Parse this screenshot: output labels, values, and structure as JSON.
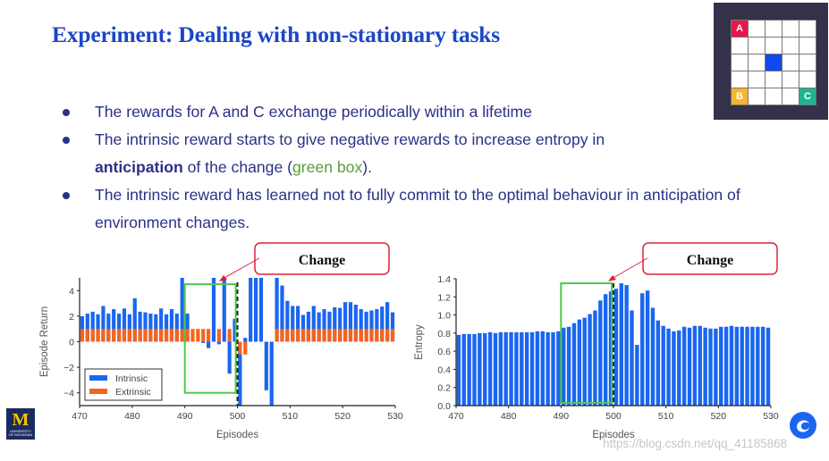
{
  "title": "Experiment: Dealing with non-stationary tasks",
  "bullets": [
    {
      "text": "The rewards for A and C exchange periodically within a lifetime"
    },
    {
      "text_before": "The intrinsic reward starts to give negative rewards to increase entropy in",
      "bold": "anticipation",
      "text_middle": " of the change (",
      "green": "green box",
      "text_after": ")."
    },
    {
      "text": "The intrinsic reward has learned not to fully commit to the optimal behaviour in anticipation of environment changes."
    }
  ],
  "gridworld": {
    "labels": {
      "a": "A",
      "b": "B",
      "c": "C"
    },
    "colors": {
      "a": "#e8174a",
      "b": "#f6b52f",
      "c": "#1fb38f",
      "agent": "#1248f0"
    }
  },
  "logo": {
    "text_m": "M",
    "text_university": "UNIVERSITY OF MICHIGAN"
  },
  "watermark": "https://blog.csdn.net/qq_41185868",
  "colors": {
    "intrinsic": "#1a66f0",
    "extrinsic": "#f5641e",
    "highlight_box": "#4cc74c",
    "callout_border": "#e0203a"
  },
  "chart_data": [
    {
      "type": "bar",
      "callout": "Change",
      "xlabel": "Episodes",
      "ylabel": "Episode Return",
      "xlim": [
        470,
        530
      ],
      "ylim": [
        -5,
        5
      ],
      "xticks": [
        "470",
        "480",
        "490",
        "500",
        "510",
        "520",
        "530"
      ],
      "yticks": [
        "4",
        "2",
        "0",
        "−2",
        "−4"
      ],
      "ytick_values": [
        4,
        2,
        0,
        -2,
        -4
      ],
      "change_episode": 500,
      "highlight_range": [
        490,
        499
      ],
      "highlight_y": [
        -4,
        4.5
      ],
      "legend": [
        "Intrinsic",
        "Extrinsic"
      ],
      "legend_position": "bottom-left",
      "x": [
        470,
        471,
        472,
        473,
        474,
        475,
        476,
        477,
        478,
        479,
        480,
        481,
        482,
        483,
        484,
        485,
        486,
        487,
        488,
        489,
        490,
        491,
        492,
        493,
        494,
        495,
        496,
        497,
        498,
        499,
        500,
        501,
        502,
        503,
        504,
        505,
        506,
        507,
        508,
        509,
        510,
        511,
        512,
        513,
        514,
        515,
        516,
        517,
        518,
        519,
        520,
        521,
        522,
        523,
        524,
        525,
        526,
        527,
        528,
        529
      ],
      "series": [
        {
          "name": "Intrinsic",
          "values": [
            2.0,
            2.2,
            2.35,
            2.15,
            2.8,
            2.2,
            2.55,
            2.2,
            2.6,
            2.15,
            3.4,
            2.35,
            2.3,
            2.2,
            2.15,
            2.6,
            2.15,
            2.55,
            2.2,
            5,
            2.2,
            0,
            0,
            -0.1,
            -0.5,
            5,
            -0.2,
            5,
            -2.5,
            1.8,
            -5,
            0.3,
            5,
            5,
            5,
            -3.8,
            -5,
            5,
            4.4,
            3.2,
            2.8,
            2.8,
            2.1,
            2.35,
            2.8,
            2.3,
            2.55,
            2.35,
            2.7,
            2.65,
            3.1,
            3.1,
            2.9,
            2.55,
            2.35,
            2.45,
            2.55,
            2.75,
            3.1,
            2.3
          ]
        },
        {
          "name": "Extrinsic",
          "values": [
            1,
            1,
            1,
            1,
            1,
            1,
            1,
            1,
            1,
            1,
            1,
            1,
            1,
            1,
            1,
            1,
            1,
            1,
            1,
            1,
            1,
            1,
            1,
            1,
            1,
            0,
            1,
            0,
            1,
            0,
            -1,
            -1,
            0,
            0,
            0,
            0,
            0,
            1,
            1,
            1,
            1,
            1,
            1,
            1,
            1,
            1,
            1,
            1,
            1,
            1,
            1,
            1,
            1,
            1,
            1,
            1,
            1,
            1,
            1,
            1
          ]
        }
      ]
    },
    {
      "type": "bar",
      "callout": "Change",
      "xlabel": "Episodes",
      "ylabel": "Entropy",
      "xlim": [
        470,
        530
      ],
      "ylim": [
        0,
        1.4
      ],
      "xticks": [
        "470",
        "480",
        "490",
        "500",
        "510",
        "520",
        "530"
      ],
      "yticks": [
        "1.4",
        "1.2",
        "1.0",
        "0.8",
        "0.6",
        "0.4",
        "0.2",
        "0.0"
      ],
      "ytick_values": [
        1.4,
        1.2,
        1.0,
        0.8,
        0.6,
        0.4,
        0.2,
        0.0
      ],
      "change_episode": 500,
      "highlight_range": [
        490,
        499
      ],
      "highlight_y": [
        0.03,
        1.35
      ],
      "x": [
        470,
        471,
        472,
        473,
        474,
        475,
        476,
        477,
        478,
        479,
        480,
        481,
        482,
        483,
        484,
        485,
        486,
        487,
        488,
        489,
        490,
        491,
        492,
        493,
        494,
        495,
        496,
        497,
        498,
        499,
        500,
        501,
        502,
        503,
        504,
        505,
        506,
        507,
        508,
        509,
        510,
        511,
        512,
        513,
        514,
        515,
        516,
        517,
        518,
        519,
        520,
        521,
        522,
        523,
        524,
        525,
        526,
        527,
        528,
        529
      ],
      "series": [
        {
          "name": "Entropy",
          "values": [
            0.78,
            0.79,
            0.79,
            0.79,
            0.8,
            0.8,
            0.81,
            0.8,
            0.81,
            0.81,
            0.81,
            0.81,
            0.81,
            0.81,
            0.81,
            0.82,
            0.82,
            0.81,
            0.81,
            0.82,
            0.86,
            0.87,
            0.91,
            0.95,
            0.97,
            1.01,
            1.05,
            1.16,
            1.23,
            1.26,
            1.29,
            1.35,
            1.33,
            1.05,
            0.67,
            1.24,
            1.27,
            1.08,
            0.94,
            0.88,
            0.85,
            0.82,
            0.83,
            0.87,
            0.86,
            0.88,
            0.88,
            0.86,
            0.85,
            0.85,
            0.87,
            0.87,
            0.88,
            0.87,
            0.87,
            0.87,
            0.87,
            0.87,
            0.87,
            0.86
          ]
        }
      ]
    }
  ]
}
